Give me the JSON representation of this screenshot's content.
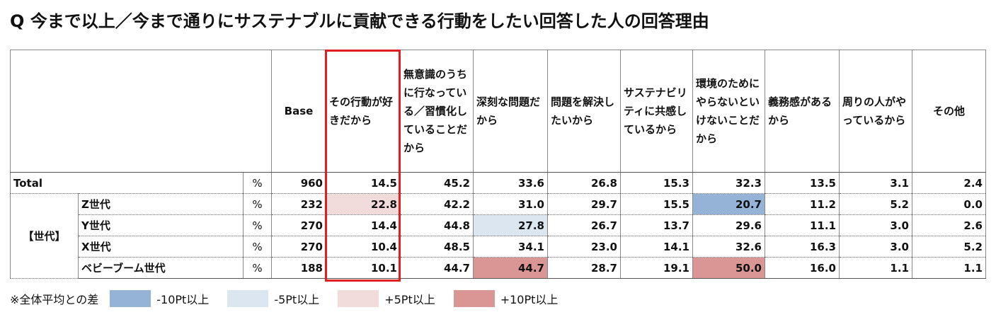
{
  "title": "Q 今まで以上／今まで通りにサステナブルに貢献できる行動をしたい回答した人の回答理由",
  "table": {
    "header": {
      "base": "Base",
      "columns": [
        "その行動が好きだから",
        "無意識のうちに行なっている／習慣化していることだから",
        "深刻な問題だから",
        "問題を解決したいから",
        "サステナビリティに共感しているから",
        "環境のためにやらないといけないことだから",
        "義務感があるから",
        "周りの人がやっているから",
        "その他"
      ]
    },
    "group_label": "【世代】",
    "rows": [
      {
        "label": "Total",
        "unit": "%",
        "base": "960",
        "values": [
          "14.5",
          "45.2",
          "33.6",
          "26.8",
          "15.3",
          "32.3",
          "13.5",
          "3.1",
          "2.4"
        ],
        "highlight_colors": [
          null,
          null,
          null,
          null,
          null,
          null,
          null,
          null,
          null
        ]
      },
      {
        "label": "Z世代",
        "unit": "%",
        "base": "232",
        "values": [
          "22.8",
          "42.2",
          "31.0",
          "29.7",
          "15.5",
          "20.7",
          "11.2",
          "5.2",
          "0.0"
        ],
        "highlight_colors": [
          "#f2dcdb",
          null,
          null,
          null,
          null,
          "#95b3d7",
          null,
          null,
          null
        ]
      },
      {
        "label": "Y世代",
        "unit": "%",
        "base": "270",
        "values": [
          "14.4",
          "44.8",
          "27.8",
          "26.7",
          "13.7",
          "29.6",
          "11.1",
          "3.0",
          "2.6"
        ],
        "highlight_colors": [
          null,
          null,
          "#dce6f1",
          null,
          null,
          null,
          null,
          null,
          null
        ]
      },
      {
        "label": "X世代",
        "unit": "%",
        "base": "270",
        "values": [
          "10.4",
          "48.5",
          "34.1",
          "23.0",
          "14.1",
          "32.6",
          "16.3",
          "3.0",
          "5.2"
        ],
        "highlight_colors": [
          null,
          null,
          null,
          null,
          null,
          null,
          null,
          null,
          null
        ]
      },
      {
        "label": "ベビーブーム世代",
        "unit": "%",
        "base": "188",
        "values": [
          "10.1",
          "44.7",
          "44.7",
          "28.7",
          "19.1",
          "50.0",
          "16.0",
          "1.1",
          "1.1"
        ],
        "highlight_colors": [
          null,
          null,
          "#da9694",
          null,
          null,
          "#da9694",
          null,
          null,
          null
        ]
      }
    ]
  },
  "legend": {
    "label": "※全体平均との差",
    "items": [
      {
        "label": "-10Pt以上",
        "color": "#95b3d7"
      },
      {
        "label": "-5Pt以上",
        "color": "#dce6f1"
      },
      {
        "label": "+5Pt以上",
        "color": "#f2dcdb"
      },
      {
        "label": "+10Pt以上",
        "color": "#da9694"
      }
    ]
  }
}
